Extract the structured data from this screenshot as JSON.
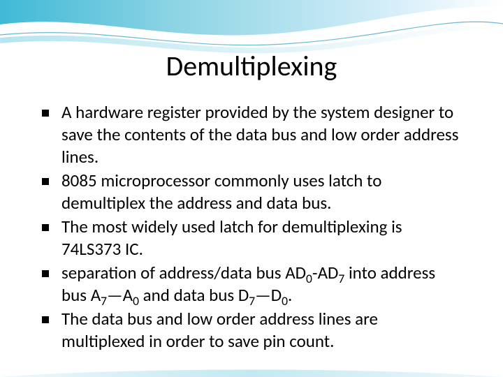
{
  "slide": {
    "title": "Demultiplexing",
    "bullets": [
      {
        "text": "A hardware register provided by the system designer to save the contents of the data bus and low order address lines."
      },
      {
        "text": "8085 microprocessor commonly uses latch to demultiplex the address and data bus."
      },
      {
        "text": "The most widely used latch for demultiplexing is 74LS373  IC."
      },
      {
        "text_html": "separation of address/data bus AD<sub>0</sub>-AD<sub>7</sub> into address bus A<sub>7</sub>—A<sub>0</sub> and data bus D<sub>7</sub>—D<sub>0</sub>."
      },
      {
        "text": "The data bus and low order address lines are multiplexed in order to save pin count."
      }
    ]
  },
  "style": {
    "background_color": "#ffffff",
    "title_fontsize": 40,
    "title_color": "#000000",
    "body_fontsize": 25,
    "body_color": "#000000",
    "bullet_marker": "square",
    "bullet_color": "#000000",
    "wave": {
      "gradient_start": "#3fb9d6",
      "gradient_mid": "#8dd4e4",
      "gradient_end": "#d9effa",
      "white": "#ffffff",
      "stroke": "#2a9cc0"
    },
    "bottom_accent": {
      "gradient_start": "#9cd9e8",
      "gradient_end": "#e2f3f9"
    }
  }
}
